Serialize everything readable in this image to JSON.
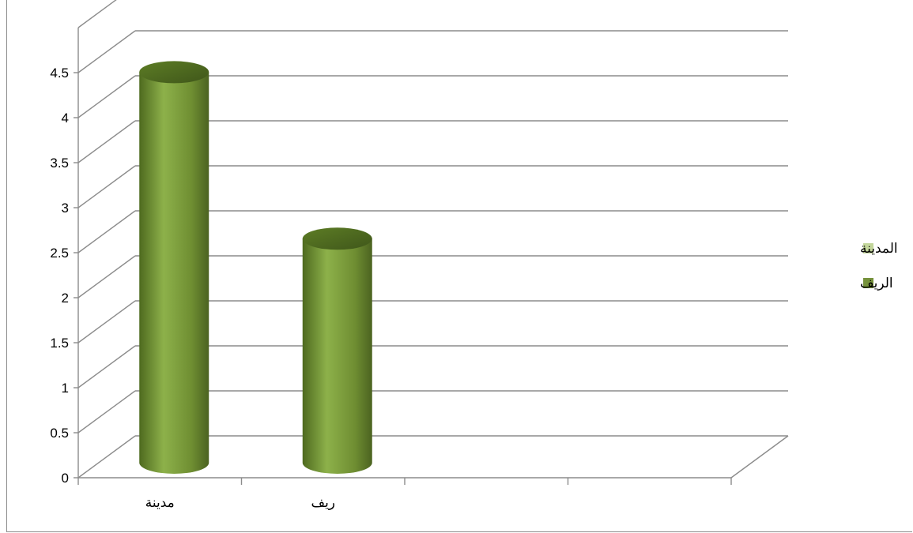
{
  "chart_data": {
    "type": "bar",
    "categories": [
      "مدينة",
      "ريف",
      "",
      ""
    ],
    "series": [
      {
        "name": "المدينة",
        "values": [
          null,
          null,
          null,
          null
        ],
        "color": "#c3d69b"
      },
      {
        "name": "الريف",
        "values": [
          4.4,
          2.55,
          null,
          null
        ],
        "color": "#76923c"
      }
    ],
    "y_ticks": [
      "0",
      "0.5",
      "1",
      "1.5",
      "2",
      "2.5",
      "3",
      "3.5",
      "4",
      "4.5"
    ],
    "ylim": [
      0,
      5
    ],
    "grid": true,
    "legend_position": "right",
    "style": "3d-cylinder"
  }
}
